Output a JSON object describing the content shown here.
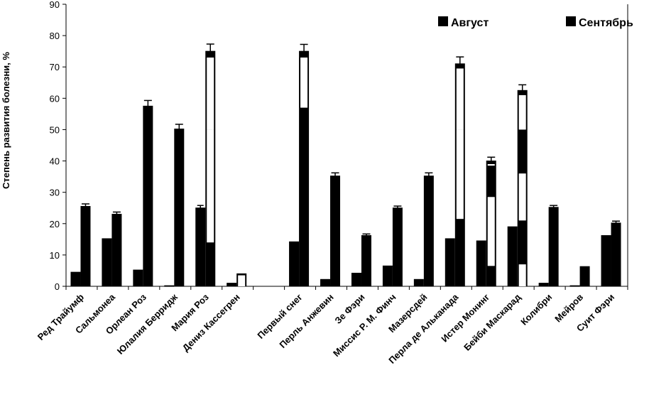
{
  "chart_data": {
    "type": "bar",
    "title": "",
    "xlabel": "",
    "ylabel": "Степень развития болезни, %",
    "ylim": [
      0,
      90
    ],
    "yticks": [
      0,
      10,
      20,
      30,
      40,
      50,
      60,
      70,
      80,
      90
    ],
    "grid": false,
    "legend_position": "top-right",
    "categories": [
      "Ред Трайумф",
      "Сальмонеа",
      "Орлеан Роз",
      "Юлалия Берридж",
      "Мария Роз",
      "Дениз Кассегрен",
      "",
      "Первый снег",
      "Перль Анжевин",
      "Зе Фэри",
      "Миссис Р. М. Финч",
      "Мазерсдей",
      "Перла де Альканада",
      "Истер Монинг",
      "Бейби Маскарад",
      "Колибри",
      "Мейров",
      "Суит Фэри"
    ],
    "series": [
      {
        "name": "Август",
        "color": "#000000",
        "values": [
          4.5,
          15.2,
          5.2,
          0.2,
          25,
          1,
          null,
          14.2,
          2.2,
          4.2,
          6.5,
          2.2,
          15.2,
          14.5,
          19,
          1,
          0.2,
          16.2
        ],
        "errors": [
          0,
          0,
          0,
          0,
          0.8,
          0,
          null,
          0,
          0,
          0,
          0,
          0,
          0,
          0,
          0,
          0,
          0,
          0
        ]
      },
      {
        "name": "Сентябрь",
        "color": "#000000",
        "values": [
          25.5,
          23,
          57.5,
          50.2,
          75,
          4,
          null,
          75,
          35.2,
          16.2,
          25,
          35.2,
          71,
          40,
          62.5,
          25.2,
          6.3,
          20.2
        ],
        "errors": [
          0.8,
          0.7,
          1.8,
          1.5,
          2.3,
          0,
          null,
          2.2,
          1,
          0.5,
          0.6,
          1,
          2.2,
          1.2,
          1.8,
          0.6,
          0,
          0.6
        ]
      }
    ],
    "september_white_segments": [
      [],
      [],
      [],
      [],
      [
        [
          14,
          50
        ],
        [
          50,
          73
        ]
      ],
      [
        [
          0,
          3.5
        ]
      ],
      [],
      [
        [
          57,
          73
        ]
      ],
      [],
      [],
      [],
      [],
      [
        [
          21.5,
          50
        ],
        [
          50,
          69.5
        ]
      ],
      [
        [
          6.5,
          28.5
        ],
        [
          38.5,
          39
        ]
      ],
      [
        [
          0,
          7
        ],
        [
          21,
          36
        ],
        [
          50,
          61
        ]
      ],
      [],
      [],
      []
    ],
    "legend": [
      "Август",
      "Сентябрь"
    ]
  }
}
